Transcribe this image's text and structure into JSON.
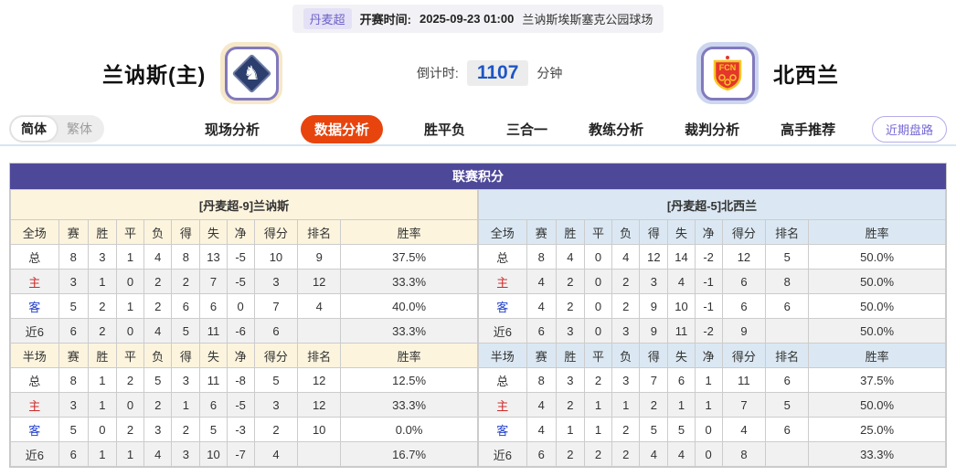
{
  "top_bar": {
    "league_badge": "丹麦超",
    "kickoff_label": "开赛时间:",
    "kickoff_time": "2025-09-23 01:00",
    "venue": "兰讷斯埃斯塞克公园球场"
  },
  "header": {
    "home_team": "兰讷斯(主)",
    "away_team": "北西兰",
    "countdown_label": "倒计时:",
    "countdown_value": "1107",
    "countdown_unit": "分钟"
  },
  "icons": {
    "home_logo": "horse-diamond-icon",
    "away_logo": "fcn-shield-icon"
  },
  "tabs": {
    "lang_simplified": "简体",
    "lang_traditional": "繁体",
    "items": [
      "现场分析",
      "数据分析",
      "胜平负",
      "三合一",
      "教练分析",
      "裁判分析",
      "高手推荐"
    ],
    "active": "数据分析",
    "recent_button": "近期盘路"
  },
  "colors": {
    "title_purple": "#4e4899",
    "active_tab_red": "#e8440d",
    "home_cream": "#fdf4de",
    "away_blue": "#dbe8f3",
    "countdown_blue": "#1d56c5",
    "home_row_label_red": "#d02a2a",
    "away_row_label_blue": "#2442cc",
    "badge_purple": "#6c61c8"
  },
  "table": {
    "title": "联赛积分",
    "home": {
      "subtitle": "[丹麦超-9]兰讷斯",
      "full": {
        "header": [
          "全场",
          "赛",
          "胜",
          "平",
          "负",
          "得",
          "失",
          "净",
          "得分",
          "排名",
          "胜率"
        ],
        "rows": [
          [
            "总",
            "8",
            "3",
            "1",
            "4",
            "8",
            "13",
            "-5",
            "10",
            "9",
            "37.5%"
          ],
          [
            "主",
            "3",
            "1",
            "0",
            "2",
            "2",
            "7",
            "-5",
            "3",
            "12",
            "33.3%"
          ],
          [
            "客",
            "5",
            "2",
            "1",
            "2",
            "6",
            "6",
            "0",
            "7",
            "4",
            "40.0%"
          ],
          [
            "近6",
            "6",
            "2",
            "0",
            "4",
            "5",
            "11",
            "-6",
            "6",
            "",
            "33.3%"
          ]
        ]
      },
      "half": {
        "header": [
          "半场",
          "赛",
          "胜",
          "平",
          "负",
          "得",
          "失",
          "净",
          "得分",
          "排名",
          "胜率"
        ],
        "rows": [
          [
            "总",
            "8",
            "1",
            "2",
            "5",
            "3",
            "11",
            "-8",
            "5",
            "12",
            "12.5%"
          ],
          [
            "主",
            "3",
            "1",
            "0",
            "2",
            "1",
            "6",
            "-5",
            "3",
            "12",
            "33.3%"
          ],
          [
            "客",
            "5",
            "0",
            "2",
            "3",
            "2",
            "5",
            "-3",
            "2",
            "10",
            "0.0%"
          ],
          [
            "近6",
            "6",
            "1",
            "1",
            "4",
            "3",
            "10",
            "-7",
            "4",
            "",
            "16.7%"
          ]
        ]
      }
    },
    "away": {
      "subtitle": "[丹麦超-5]北西兰",
      "full": {
        "header": [
          "全场",
          "赛",
          "胜",
          "平",
          "负",
          "得",
          "失",
          "净",
          "得分",
          "排名",
          "胜率"
        ],
        "rows": [
          [
            "总",
            "8",
            "4",
            "0",
            "4",
            "12",
            "14",
            "-2",
            "12",
            "5",
            "50.0%"
          ],
          [
            "主",
            "4",
            "2",
            "0",
            "2",
            "3",
            "4",
            "-1",
            "6",
            "8",
            "50.0%"
          ],
          [
            "客",
            "4",
            "2",
            "0",
            "2",
            "9",
            "10",
            "-1",
            "6",
            "6",
            "50.0%"
          ],
          [
            "近6",
            "6",
            "3",
            "0",
            "3",
            "9",
            "11",
            "-2",
            "9",
            "",
            "50.0%"
          ]
        ]
      },
      "half": {
        "header": [
          "半场",
          "赛",
          "胜",
          "平",
          "负",
          "得",
          "失",
          "净",
          "得分",
          "排名",
          "胜率"
        ],
        "rows": [
          [
            "总",
            "8",
            "3",
            "2",
            "3",
            "7",
            "6",
            "1",
            "11",
            "6",
            "37.5%"
          ],
          [
            "主",
            "4",
            "2",
            "1",
            "1",
            "2",
            "1",
            "1",
            "7",
            "5",
            "50.0%"
          ],
          [
            "客",
            "4",
            "1",
            "1",
            "2",
            "5",
            "5",
            "0",
            "4",
            "6",
            "25.0%"
          ],
          [
            "近6",
            "6",
            "2",
            "2",
            "2",
            "4",
            "4",
            "0",
            "8",
            "",
            "33.3%"
          ]
        ]
      }
    }
  }
}
